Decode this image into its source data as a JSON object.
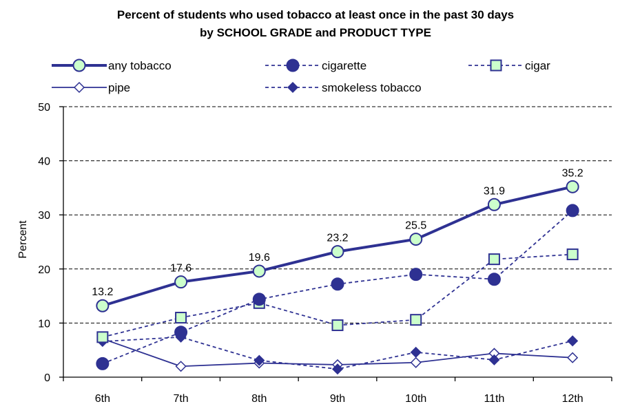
{
  "chart_data": {
    "type": "line",
    "title_line1": "Percent of students who used tobacco at least once in the past 30 days",
    "title_line2": "by SCHOOL GRADE and PRODUCT TYPE",
    "xlabel": "",
    "ylabel": "Percent",
    "categories": [
      "6th",
      "7th",
      "8th",
      "9th",
      "10th",
      "11th",
      "12th"
    ],
    "ylim": [
      0,
      50
    ],
    "yticks": [
      0,
      10,
      20,
      30,
      40,
      50
    ],
    "grid": "horizontal dashed",
    "legend_position": "top",
    "series": [
      {
        "name": "any tobacco",
        "key": "any",
        "values": [
          13.2,
          17.6,
          19.6,
          23.2,
          25.5,
          31.9,
          35.2
        ],
        "labels": [
          "13.2",
          "17.6",
          "19.6",
          "23.2",
          "25.5",
          "31.9",
          "35.2"
        ],
        "color": "#2e3192",
        "marker": "circle",
        "marker_fill": "#ccffcc",
        "line_style": "solid-thick"
      },
      {
        "name": "cigarette",
        "key": "cig",
        "values": [
          2.5,
          8.3,
          14.4,
          17.2,
          19.0,
          18.1,
          30.8
        ],
        "color": "#2e3192",
        "marker": "circle",
        "marker_fill": "#2e3192",
        "line_style": "dashed"
      },
      {
        "name": "cigar",
        "key": "cigar",
        "values": [
          7.4,
          11.0,
          13.7,
          9.6,
          10.6,
          21.8,
          22.7
        ],
        "color": "#2e3192",
        "marker": "square",
        "marker_fill": "#ccffcc",
        "line_style": "dashed"
      },
      {
        "name": "pipe",
        "key": "pipe",
        "values": [
          7.1,
          2.0,
          2.6,
          2.3,
          2.7,
          4.4,
          3.6
        ],
        "color": "#2e3192",
        "marker": "diamond",
        "marker_fill": "#ffffff",
        "line_style": "solid"
      },
      {
        "name": "smokeless tobacco",
        "key": "smokeless",
        "values": [
          6.6,
          7.4,
          3.1,
          1.5,
          4.6,
          3.2,
          6.7
        ],
        "color": "#2e3192",
        "marker": "diamond",
        "marker_fill": "#2e3192",
        "line_style": "dashed"
      }
    ]
  }
}
